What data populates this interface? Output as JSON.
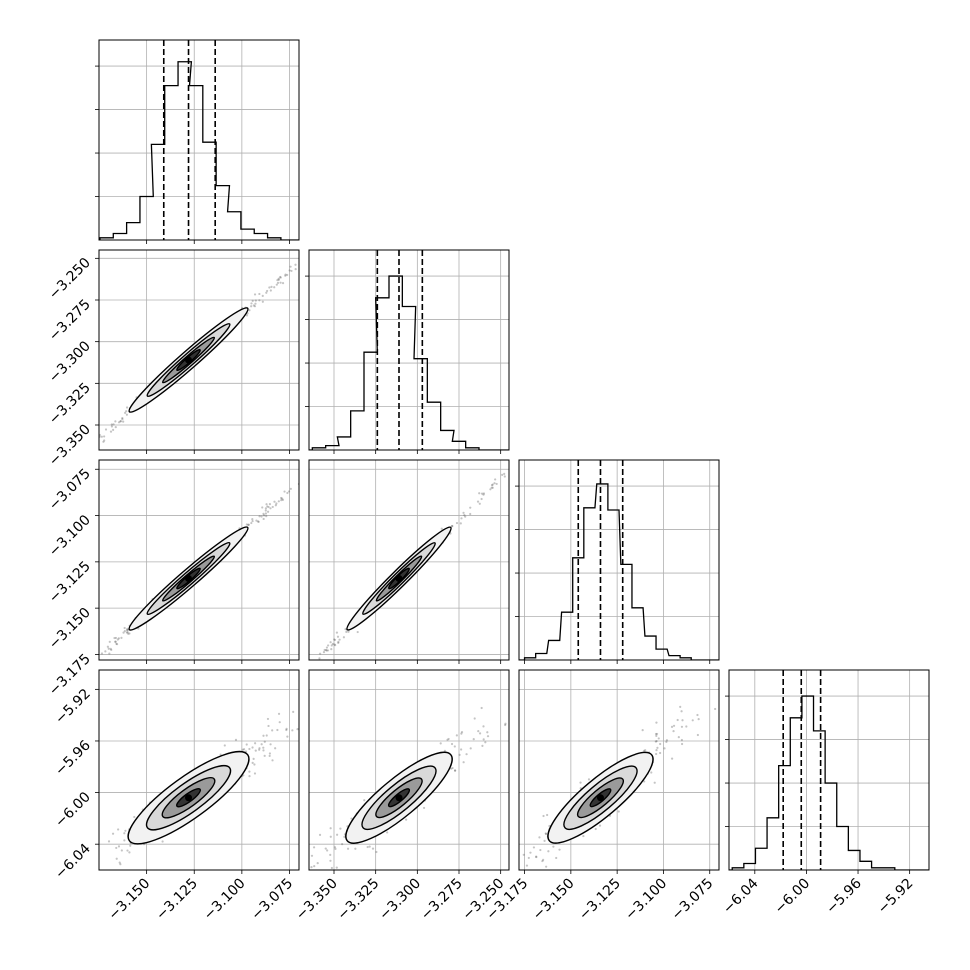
{
  "chart_data": {
    "type": "corner",
    "grid": true,
    "parameters": [
      {
        "xlim": [
          -3.175,
          -3.07
        ],
        "ticks": [
          -3.15,
          -3.125,
          -3.1,
          -3.075
        ],
        "tick_labels": [
          "−3.150",
          "−3.125",
          "−3.100",
          "−3.075"
        ],
        "quantiles": [
          -3.141,
          -3.128,
          -3.114
        ]
      },
      {
        "xlim": [
          -3.365,
          -3.245
        ],
        "ticks": [
          -3.35,
          -3.325,
          -3.3,
          -3.275,
          -3.25
        ],
        "tick_labels": [
          "−3.350",
          "−3.325",
          "−3.300",
          "−3.275",
          "−3.250"
        ],
        "quantiles": [
          -3.324,
          -3.311,
          -3.297
        ]
      },
      {
        "xlim": [
          -3.178,
          -3.07
        ],
        "ticks": [
          -3.175,
          -3.15,
          -3.125,
          -3.1,
          -3.075
        ],
        "tick_labels": [
          "−3.175",
          "−3.150",
          "−3.125",
          "−3.100",
          "−3.075"
        ],
        "quantiles": [
          -3.146,
          -3.134,
          -3.122
        ]
      },
      {
        "xlim": [
          -6.06,
          -5.905
        ],
        "ticks": [
          -6.04,
          -6.0,
          -5.96,
          -5.92
        ],
        "tick_labels": [
          "−6.04",
          "−6.00",
          "−5.96",
          "−5.92"
        ],
        "quantiles": [
          -6.018,
          -6.004,
          -5.989
        ]
      }
    ],
    "histograms": [
      [
        {
          "x": -3.171,
          "count": 1
        },
        {
          "x": -3.164,
          "count": 3
        },
        {
          "x": -3.157,
          "count": 8
        },
        {
          "x": -3.15,
          "count": 20
        },
        {
          "x": -3.144,
          "count": 44
        },
        {
          "x": -3.137,
          "count": 71
        },
        {
          "x": -3.13,
          "count": 82
        },
        {
          "x": -3.124,
          "count": 71
        },
        {
          "x": -3.117,
          "count": 45
        },
        {
          "x": -3.11,
          "count": 25
        },
        {
          "x": -3.104,
          "count": 13
        },
        {
          "x": -3.097,
          "count": 5
        },
        {
          "x": -3.09,
          "count": 3
        },
        {
          "x": -3.083,
          "count": 1
        }
      ],
      [
        {
          "x": -3.359,
          "count": 1
        },
        {
          "x": -3.351,
          "count": 2
        },
        {
          "x": -3.344,
          "count": 6
        },
        {
          "x": -3.336,
          "count": 18
        },
        {
          "x": -3.328,
          "count": 45
        },
        {
          "x": -3.321,
          "count": 70
        },
        {
          "x": -3.313,
          "count": 80
        },
        {
          "x": -3.305,
          "count": 66
        },
        {
          "x": -3.298,
          "count": 42
        },
        {
          "x": -3.29,
          "count": 22
        },
        {
          "x": -3.282,
          "count": 9
        },
        {
          "x": -3.275,
          "count": 4
        },
        {
          "x": -3.267,
          "count": 1
        }
      ],
      [
        {
          "x": -3.172,
          "count": 1
        },
        {
          "x": -3.166,
          "count": 3
        },
        {
          "x": -3.159,
          "count": 9
        },
        {
          "x": -3.152,
          "count": 22
        },
        {
          "x": -3.146,
          "count": 47
        },
        {
          "x": -3.14,
          "count": 70
        },
        {
          "x": -3.133,
          "count": 81
        },
        {
          "x": -3.127,
          "count": 69
        },
        {
          "x": -3.12,
          "count": 44
        },
        {
          "x": -3.114,
          "count": 24
        },
        {
          "x": -3.107,
          "count": 11
        },
        {
          "x": -3.101,
          "count": 5
        },
        {
          "x": -3.094,
          "count": 2
        },
        {
          "x": -3.088,
          "count": 1
        }
      ],
      [
        {
          "x": -6.053,
          "count": 1
        },
        {
          "x": -6.044,
          "count": 3
        },
        {
          "x": -6.035,
          "count": 10
        },
        {
          "x": -6.026,
          "count": 24
        },
        {
          "x": -6.017,
          "count": 48
        },
        {
          "x": -6.008,
          "count": 70
        },
        {
          "x": -5.999,
          "count": 80
        },
        {
          "x": -5.99,
          "count": 64
        },
        {
          "x": -5.981,
          "count": 40
        },
        {
          "x": -5.972,
          "count": 20
        },
        {
          "x": -5.963,
          "count": 9
        },
        {
          "x": -5.954,
          "count": 4
        },
        {
          "x": -5.945,
          "count": 1
        },
        {
          "x": -5.936,
          "count": 1
        }
      ]
    ],
    "hist_ylim": [
      0,
      92
    ],
    "hist_ticks": [
      20,
      40,
      60,
      80
    ]
  }
}
